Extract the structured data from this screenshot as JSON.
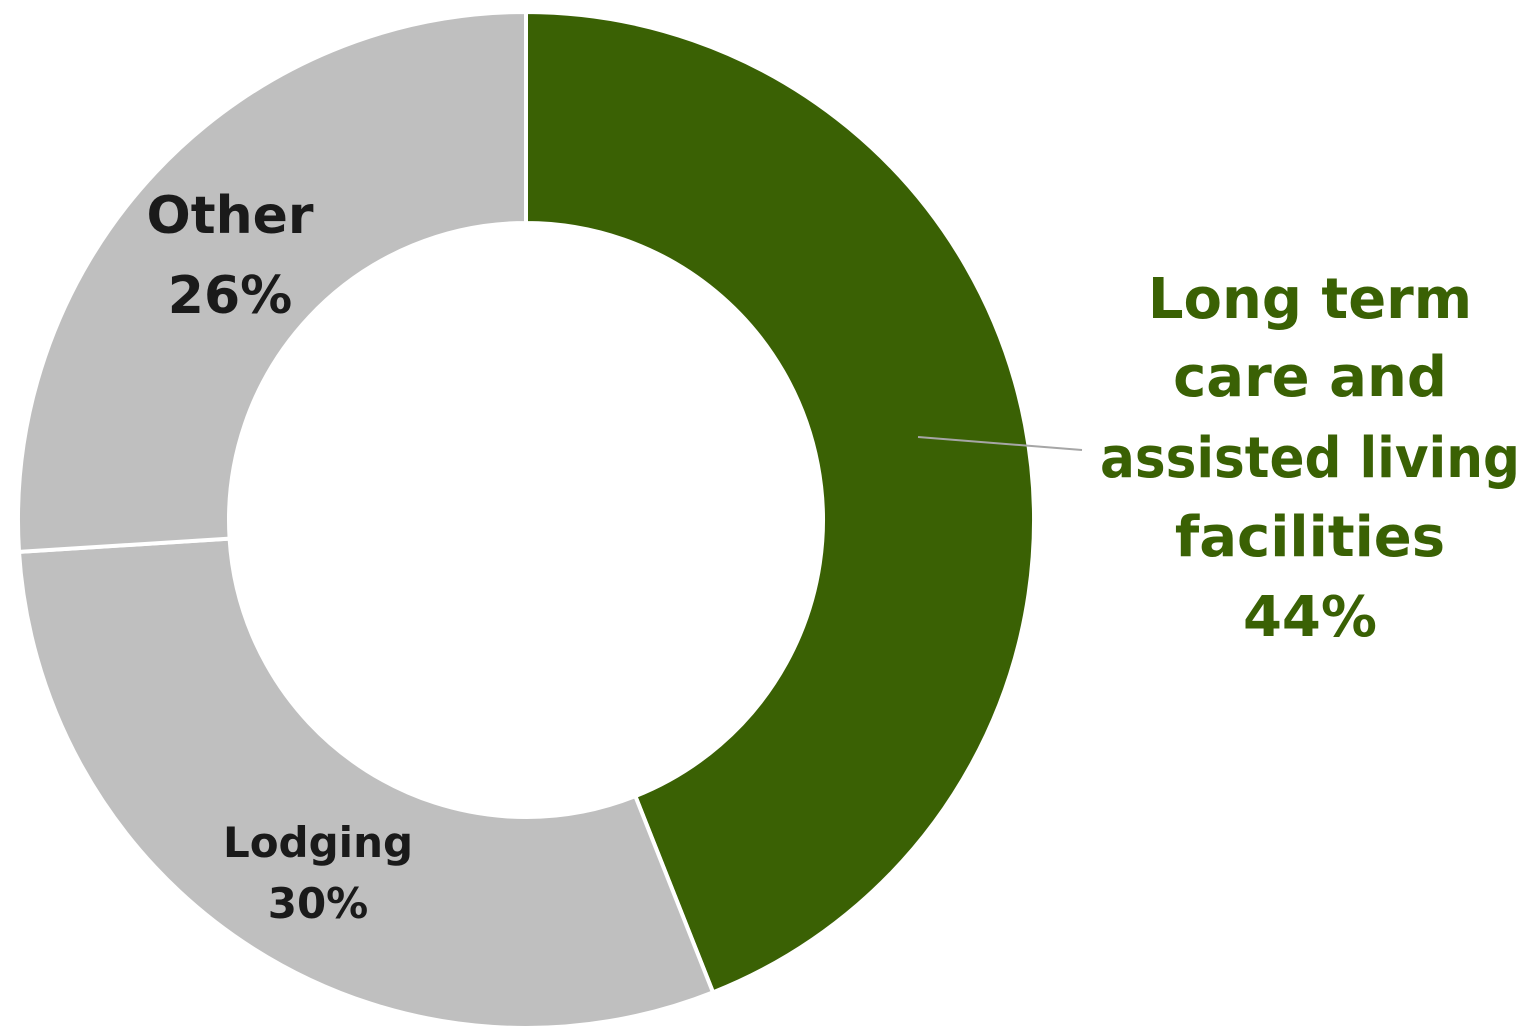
{
  "chart_data": {
    "type": "pie",
    "variant": "donut",
    "slices": [
      {
        "key": "ltc",
        "label_lines": [
          "Long term",
          "care and",
          "assisted living",
          "facilities"
        ],
        "value": 44,
        "value_label": "44%",
        "color": "#3a6104",
        "label_color": "#3a6104"
      },
      {
        "key": "lodging",
        "label_lines": [
          "Lodging"
        ],
        "value": 30,
        "value_label": "30%",
        "color": "#bfbfbf",
        "label_color": "#1a1a1a"
      },
      {
        "key": "other",
        "label_lines": [
          "Other"
        ],
        "value": 26,
        "value_label": "26%",
        "color": "#bfbfbf",
        "label_color": "#1a1a1a"
      }
    ],
    "start_angle": "12 o'clock",
    "direction": "clockwise",
    "separator_color": "#ffffff",
    "legend": "none"
  }
}
